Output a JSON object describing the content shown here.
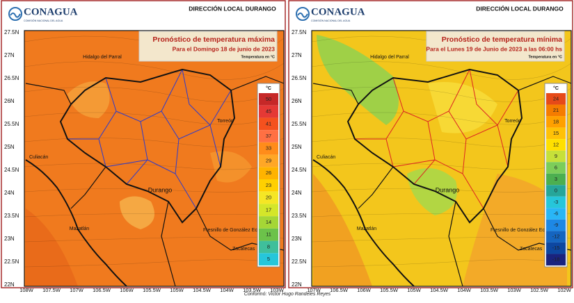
{
  "panels": [
    {
      "logo": "CONAGUA",
      "logo_sub": "COMISIÓN NACIONAL DEL AGUA",
      "office": "DIRECCIÓN LOCAL DURANGO",
      "title": "Pronóstico de temperatura máxima",
      "subtitle": "Para el Domingo 18 de junio de 2023",
      "unit_note": "Temperatura en °C",
      "lat_labels": [
        "27.5N",
        "27N",
        "26.5N",
        "26N",
        "25.5N",
        "25N",
        "24.5N",
        "24N",
        "23.5N",
        "23N",
        "22.5N",
        "22N"
      ],
      "lon_labels": [
        "108W",
        "107.5W",
        "107W",
        "106.5W",
        "106W",
        "105.5W",
        "105W",
        "104.5W",
        "104W",
        "103.5W",
        "103W"
      ],
      "legend": {
        "unit": "°C",
        "items": [
          {
            "label": "50",
            "color": "#c62828"
          },
          {
            "label": "45",
            "color": "#e53935"
          },
          {
            "label": "41",
            "color": "#f4511e"
          },
          {
            "label": "37",
            "color": "#ff7043"
          },
          {
            "label": "33",
            "color": "#ff8c1a"
          },
          {
            "label": "29",
            "color": "#ffa726"
          },
          {
            "label": "26",
            "color": "#ffb300"
          },
          {
            "label": "23",
            "color": "#ffd000"
          },
          {
            "label": "20",
            "color": "#f5e625"
          },
          {
            "label": "17",
            "color": "#d4e62a"
          },
          {
            "label": "14",
            "color": "#a5d636"
          },
          {
            "label": "11",
            "color": "#6cc24a"
          },
          {
            "label": "8",
            "color": "#3fbf9b"
          },
          {
            "label": "5",
            "color": "#26c6da"
          }
        ]
      },
      "places": [
        "Hidalgo del Parral",
        "Culiacán",
        "Mazatlán",
        "Durango",
        "Torreón",
        "Fresnillo de González Ec",
        "Zacatecas"
      ]
    },
    {
      "logo": "CONAGUA",
      "logo_sub": "COMISIÓN NACIONAL DEL AGUA",
      "office": "DIRECCIÓN LOCAL DURANGO",
      "title": "Pronóstico de temperatura mínima",
      "subtitle": "Para el Lunes 19 de Junio de 2023 a las 06:00 hs",
      "unit_note": "Temperatura en °C",
      "lat_labels": [
        "27.5N",
        "27N",
        "26.5N",
        "26N",
        "25.5N",
        "25N",
        "24.5N",
        "24N",
        "23.5N",
        "23N",
        "22.5N",
        "22N"
      ],
      "lon_labels": [
        "107W",
        "106.5W",
        "106W",
        "105.5W",
        "105W",
        "104.5W",
        "104W",
        "103.5W",
        "103W",
        "102.5W",
        "102W"
      ],
      "legend": {
        "unit": "°C",
        "items": [
          {
            "label": "24",
            "color": "#e64a19"
          },
          {
            "label": "21",
            "color": "#f57c00"
          },
          {
            "label": "18",
            "color": "#ffa000"
          },
          {
            "label": "15",
            "color": "#ffc107"
          },
          {
            "label": "12",
            "color": "#ffe000"
          },
          {
            "label": "9",
            "color": "#c6e03a"
          },
          {
            "label": "6",
            "color": "#7ccd5a"
          },
          {
            "label": "3",
            "color": "#4caf50"
          },
          {
            "label": "0",
            "color": "#26a69a"
          },
          {
            "label": "-3",
            "color": "#26c6da"
          },
          {
            "label": "-6",
            "color": "#29b6f6"
          },
          {
            "label": "-9",
            "color": "#1e88e5"
          },
          {
            "label": "-12",
            "color": "#1565c0"
          },
          {
            "label": "-15",
            "color": "#0d47a1"
          },
          {
            "label": "-18",
            "color": "#1a237e"
          }
        ]
      },
      "places": [
        "Hidalgo del Parral",
        "Culiacán",
        "Mazatlán",
        "Durango",
        "Torreón",
        "Fresnillo de González Echeverría",
        "Zacatecas"
      ]
    }
  ],
  "footer": "Conformó: Victor Hugo Randeles Reyes"
}
